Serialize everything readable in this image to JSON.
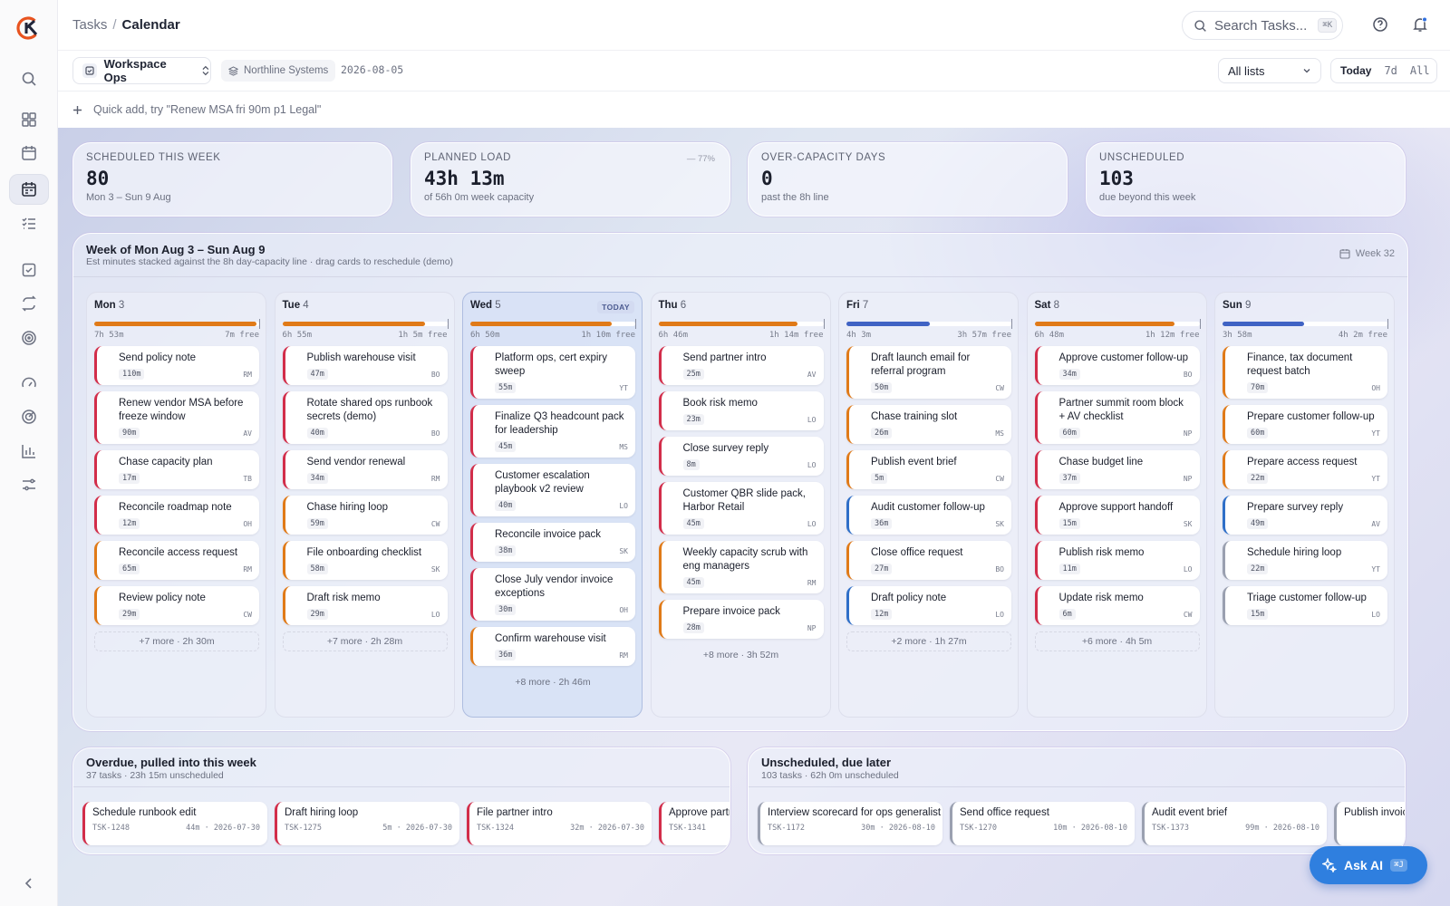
{
  "breadcrumb": {
    "parent": "Tasks",
    "current": "Calendar"
  },
  "search": {
    "placeholder": "Search Tasks...",
    "shortcut": "⌘K"
  },
  "toolbar": {
    "workspace": "Workspace Ops",
    "org": "Northline Systems",
    "date": "2026-08-05",
    "list_filter": "All lists",
    "range": [
      "Today",
      "7d",
      "All"
    ],
    "range_selected": "Today"
  },
  "quick_add": {
    "placeholder": "Quick add, try \"Renew MSA fri 90m p1 Legal\""
  },
  "stats": [
    {
      "label": "SCHEDULED THIS WEEK",
      "value": "80",
      "sub": "Mon 3 – Sun 9 Aug",
      "pct": ""
    },
    {
      "label": "PLANNED LOAD",
      "value": "43h 13m",
      "sub": "of 56h 0m week capacity",
      "pct": "— 77%"
    },
    {
      "label": "OVER-CAPACITY DAYS",
      "value": "0",
      "sub": "past the 8h line",
      "pct": ""
    },
    {
      "label": "UNSCHEDULED",
      "value": "103",
      "sub": "due beyond this week",
      "pct": ""
    }
  ],
  "week": {
    "title": "Week of Mon Aug 3 – Sun Aug 9",
    "subtitle": "Est minutes stacked against the 8h day-capacity line · drag cards to reschedule (demo)",
    "week_label": "Week 32",
    "today_tag": "TODAY"
  },
  "days": [
    {
      "name": "Mon",
      "num": "3",
      "load": "7h 53m",
      "free": "7m free",
      "fill": 0.985,
      "color": "#e07a18",
      "more": "+7 more · 2h 30m",
      "cards": [
        {
          "title": "Send policy note",
          "dur": "110m",
          "who": "RM",
          "color": "#d22d4a"
        },
        {
          "title": "Renew vendor MSA before freeze window",
          "dur": "90m",
          "who": "AV",
          "color": "#d22d4a"
        },
        {
          "title": "Chase capacity plan",
          "dur": "17m",
          "who": "TB",
          "color": "#d22d4a"
        },
        {
          "title": "Reconcile roadmap note",
          "dur": "12m",
          "who": "OH",
          "color": "#d22d4a"
        },
        {
          "title": "Reconcile access request",
          "dur": "65m",
          "who": "RM",
          "color": "#e07a18"
        },
        {
          "title": "Review policy note",
          "dur": "29m",
          "who": "CW",
          "color": "#e07a18"
        }
      ]
    },
    {
      "name": "Tue",
      "num": "4",
      "load": "6h 55m",
      "free": "1h 5m free",
      "fill": 0.865,
      "color": "#e07a18",
      "more": "+7 more · 2h 28m",
      "cards": [
        {
          "title": "Publish warehouse visit",
          "dur": "47m",
          "who": "BO",
          "color": "#d22d4a"
        },
        {
          "title": "Rotate shared ops runbook secrets (demo)",
          "dur": "40m",
          "who": "BO",
          "color": "#d22d4a"
        },
        {
          "title": "Send vendor renewal",
          "dur": "34m",
          "who": "RM",
          "color": "#d22d4a"
        },
        {
          "title": "Chase hiring loop",
          "dur": "59m",
          "who": "CW",
          "color": "#e07a18"
        },
        {
          "title": "File onboarding checklist",
          "dur": "58m",
          "who": "SK",
          "color": "#e07a18"
        },
        {
          "title": "Draft risk memo",
          "dur": "29m",
          "who": "LO",
          "color": "#e07a18"
        }
      ]
    },
    {
      "name": "Wed",
      "num": "5",
      "load": "6h 50m",
      "free": "1h 10m free",
      "fill": 0.855,
      "color": "#e07a18",
      "more": "+8 more · 2h 46m",
      "today": true,
      "cards": [
        {
          "title": "Platform ops, cert expiry sweep",
          "dur": "55m",
          "who": "YT",
          "color": "#d22d4a"
        },
        {
          "title": "Finalize Q3 headcount pack for leadership",
          "dur": "45m",
          "who": "MS",
          "color": "#d22d4a"
        },
        {
          "title": "Customer escalation playbook v2 review",
          "dur": "40m",
          "who": "LO",
          "color": "#d22d4a"
        },
        {
          "title": "Reconcile invoice pack",
          "dur": "38m",
          "who": "SK",
          "color": "#d22d4a"
        },
        {
          "title": "Close July vendor invoice exceptions",
          "dur": "30m",
          "who": "OH",
          "color": "#d22d4a"
        },
        {
          "title": "Confirm warehouse visit",
          "dur": "36m",
          "who": "RM",
          "color": "#e07a18"
        }
      ]
    },
    {
      "name": "Thu",
      "num": "6",
      "load": "6h 46m",
      "free": "1h 14m free",
      "fill": 0.846,
      "color": "#e07a18",
      "more": "+8 more · 3h 52m",
      "cards": [
        {
          "title": "Send partner intro",
          "dur": "25m",
          "who": "AV",
          "color": "#d22d4a"
        },
        {
          "title": "Book risk memo",
          "dur": "23m",
          "who": "LO",
          "color": "#d22d4a"
        },
        {
          "title": "Close survey reply",
          "dur": "8m",
          "who": "LO",
          "color": "#d22d4a"
        },
        {
          "title": "Customer QBR slide pack, Harbor Retail",
          "dur": "45m",
          "who": "LO",
          "color": "#d22d4a"
        },
        {
          "title": "Weekly capacity scrub with eng managers",
          "dur": "45m",
          "who": "RM",
          "color": "#e07a18"
        },
        {
          "title": "Prepare invoice pack",
          "dur": "28m",
          "who": "NP",
          "color": "#e07a18"
        }
      ]
    },
    {
      "name": "Fri",
      "num": "7",
      "load": "4h 3m",
      "free": "3h 57m free",
      "fill": 0.506,
      "color": "#4063c4",
      "more": "+2 more · 1h 27m",
      "cards": [
        {
          "title": "Draft launch email for referral program",
          "dur": "50m",
          "who": "CW",
          "color": "#e07a18"
        },
        {
          "title": "Chase training slot",
          "dur": "26m",
          "who": "MS",
          "color": "#e07a18"
        },
        {
          "title": "Publish event brief",
          "dur": "5m",
          "who": "CW",
          "color": "#e07a18"
        },
        {
          "title": "Audit customer follow-up",
          "dur": "36m",
          "who": "SK",
          "color": "#2f6fc8"
        },
        {
          "title": "Close office request",
          "dur": "27m",
          "who": "BO",
          "color": "#e07a18"
        },
        {
          "title": "Draft policy note",
          "dur": "12m",
          "who": "LO",
          "color": "#2f6fc8"
        }
      ]
    },
    {
      "name": "Sat",
      "num": "8",
      "load": "6h 48m",
      "free": "1h 12m free",
      "fill": 0.85,
      "color": "#e07a18",
      "more": "+6 more · 4h 5m",
      "cards": [
        {
          "title": "Approve customer follow-up",
          "dur": "34m",
          "who": "BO",
          "color": "#d22d4a"
        },
        {
          "title": "Partner summit room block + AV checklist",
          "dur": "60m",
          "who": "NP",
          "color": "#d22d4a"
        },
        {
          "title": "Chase budget line",
          "dur": "37m",
          "who": "NP",
          "color": "#d22d4a"
        },
        {
          "title": "Approve support handoff",
          "dur": "15m",
          "who": "SK",
          "color": "#d22d4a"
        },
        {
          "title": "Publish risk memo",
          "dur": "11m",
          "who": "LO",
          "color": "#d22d4a"
        },
        {
          "title": "Update risk memo",
          "dur": "6m",
          "who": "CW",
          "color": "#d22d4a"
        }
      ]
    },
    {
      "name": "Sun",
      "num": "9",
      "load": "3h 58m",
      "free": "4h 2m free",
      "fill": 0.497,
      "color": "#4063c4",
      "more": "",
      "cards": [
        {
          "title": "Finance, tax document request batch",
          "dur": "70m",
          "who": "OH",
          "color": "#e07a18"
        },
        {
          "title": "Prepare customer follow-up",
          "dur": "60m",
          "who": "YT",
          "color": "#e07a18"
        },
        {
          "title": "Prepare access request",
          "dur": "22m",
          "who": "YT",
          "color": "#e07a18"
        },
        {
          "title": "Prepare survey reply",
          "dur": "49m",
          "who": "AV",
          "color": "#2f6fc8"
        },
        {
          "title": "Schedule hiring loop",
          "dur": "22m",
          "who": "YT",
          "color": "#9aa0b0"
        },
        {
          "title": "Triage customer follow-up",
          "dur": "15m",
          "who": "LO",
          "color": "#9aa0b0"
        }
      ]
    }
  ],
  "overdue": {
    "title": "Overdue, pulled into this week",
    "subtitle": "37 tasks · 23h 15m unscheduled",
    "items": [
      {
        "title": "Schedule runbook edit",
        "id": "TSK-1248",
        "dur": "44m",
        "date": "2026-07-30",
        "color": "#d22d4a"
      },
      {
        "title": "Draft hiring loop",
        "id": "TSK-1275",
        "dur": "5m",
        "date": "2026-07-30",
        "color": "#d22d4a"
      },
      {
        "title": "File partner intro",
        "id": "TSK-1324",
        "dur": "32m",
        "date": "2026-07-30",
        "color": "#d22d4a"
      },
      {
        "title": "Approve partner",
        "id": "TSK-1341",
        "dur": "",
        "date": "",
        "color": "#d22d4a"
      }
    ]
  },
  "later": {
    "title": "Unscheduled, due later",
    "subtitle": "103 tasks · 62h 0m unscheduled",
    "items": [
      {
        "title": "Interview scorecard for ops generalist",
        "id": "TSK-1172",
        "dur": "30m",
        "date": "2026-08-10",
        "color": "#9aa0b0"
      },
      {
        "title": "Send office request",
        "id": "TSK-1270",
        "dur": "10m",
        "date": "2026-08-10",
        "color": "#9aa0b0"
      },
      {
        "title": "Audit event brief",
        "id": "TSK-1373",
        "dur": "99m",
        "date": "2026-08-10",
        "color": "#9aa0b0"
      },
      {
        "title": "Publish invoice",
        "id": "",
        "dur": "",
        "date": "",
        "color": "#9aa0b0"
      }
    ]
  },
  "ask_ai": {
    "label": "Ask AI",
    "shortcut": "⌘J"
  }
}
